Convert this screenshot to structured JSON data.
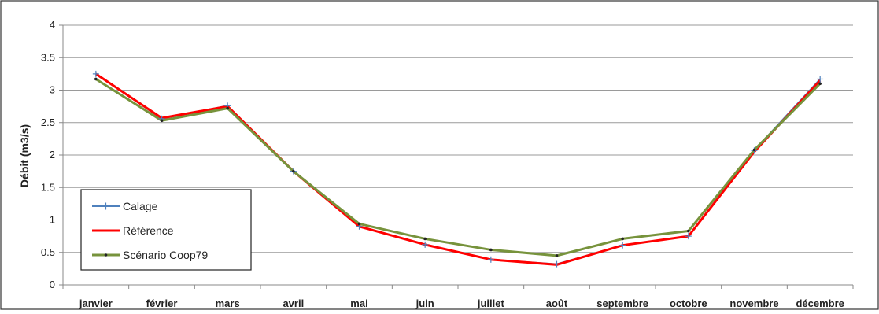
{
  "chart_data": {
    "type": "line",
    "ylabel": "Débit (m3/s)",
    "xlabel": "",
    "categories": [
      "janvier",
      "février",
      "mars",
      "avril",
      "mai",
      "juin",
      "juillet",
      "août",
      "septembre",
      "octobre",
      "novembre",
      "décembre"
    ],
    "ylim": [
      0,
      4
    ],
    "yticks": [
      "0",
      "0.5",
      "1",
      "1.5",
      "2",
      "2.5",
      "3",
      "3.5",
      "4"
    ],
    "grid": true,
    "legend_position": "bottom-left",
    "series": [
      {
        "name": "Calage",
        "color": "#4f81bd",
        "marker": "plus",
        "values": [
          3.25,
          2.56,
          2.76,
          1.75,
          0.9,
          0.62,
          0.39,
          0.32,
          0.61,
          0.75,
          2.07,
          3.17
        ]
      },
      {
        "name": "Référence",
        "color": "#ff0000",
        "marker": "none",
        "values": [
          3.25,
          2.57,
          2.75,
          1.75,
          0.9,
          0.62,
          0.39,
          0.31,
          0.61,
          0.75,
          2.05,
          3.15
        ]
      },
      {
        "name": "Scénario Coop79",
        "color": "#77933c",
        "marker": "dot",
        "values": [
          3.17,
          2.53,
          2.72,
          1.75,
          0.94,
          0.71,
          0.54,
          0.45,
          0.71,
          0.83,
          2.08,
          3.1
        ]
      }
    ]
  }
}
